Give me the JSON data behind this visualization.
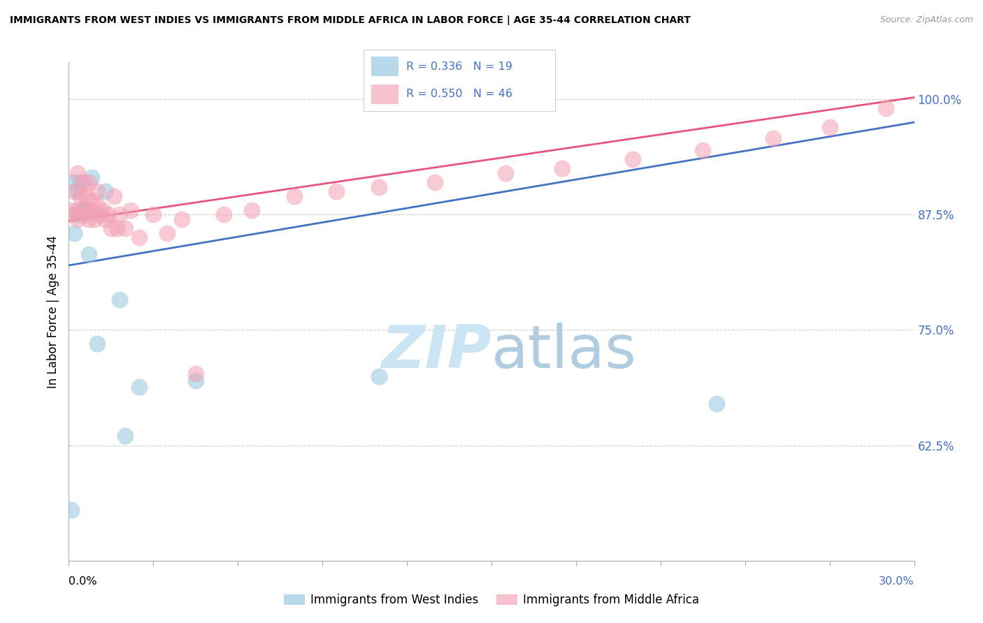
{
  "title": "IMMIGRANTS FROM WEST INDIES VS IMMIGRANTS FROM MIDDLE AFRICA IN LABOR FORCE | AGE 35-44 CORRELATION CHART",
  "source": "Source: ZipAtlas.com",
  "ylabel": "In Labor Force | Age 35-44",
  "xlim": [
    0.0,
    0.3
  ],
  "ylim": [
    0.5,
    1.04
  ],
  "yticks": [
    0.625,
    0.75,
    0.875,
    1.0
  ],
  "ytick_labels": [
    "62.5%",
    "75.0%",
    "87.5%",
    "100.0%"
  ],
  "xticks": [
    0.0,
    0.03,
    0.06,
    0.09,
    0.12,
    0.15,
    0.18,
    0.21,
    0.24,
    0.27,
    0.3
  ],
  "blue_label": "Immigrants from West Indies",
  "pink_label": "Immigrants from Middle Africa",
  "blue_R": 0.336,
  "blue_N": 19,
  "pink_R": 0.55,
  "pink_N": 46,
  "blue_color": "#92c5de",
  "pink_color": "#f4a0b5",
  "blue_line_color": "#4472c4",
  "pink_line_color": "#e8547a",
  "watermark_color": "#cce5f5",
  "blue_scatter_x": [
    0.001,
    0.002,
    0.003,
    0.004,
    0.005,
    0.006,
    0.007,
    0.008,
    0.01,
    0.013,
    0.018,
    0.02,
    0.025,
    0.045,
    0.11,
    0.23,
    0.002,
    0.003,
    0.004
  ],
  "blue_scatter_y": [
    0.555,
    0.855,
    0.88,
    0.875,
    0.878,
    0.88,
    0.832,
    0.915,
    0.735,
    0.9,
    0.783,
    0.635,
    0.688,
    0.695,
    0.7,
    0.67,
    0.91,
    0.9,
    0.91
  ],
  "pink_scatter_x": [
    0.001,
    0.002,
    0.002,
    0.003,
    0.003,
    0.004,
    0.004,
    0.005,
    0.005,
    0.006,
    0.006,
    0.007,
    0.007,
    0.008,
    0.008,
    0.009,
    0.01,
    0.01,
    0.011,
    0.012,
    0.013,
    0.014,
    0.015,
    0.016,
    0.017,
    0.018,
    0.02,
    0.022,
    0.025,
    0.03,
    0.035,
    0.04,
    0.045,
    0.055,
    0.065,
    0.08,
    0.095,
    0.11,
    0.13,
    0.155,
    0.175,
    0.2,
    0.225,
    0.25,
    0.27,
    0.29
  ],
  "pink_scatter_y": [
    0.88,
    0.875,
    0.9,
    0.87,
    0.92,
    0.88,
    0.895,
    0.882,
    0.91,
    0.875,
    0.895,
    0.87,
    0.91,
    0.88,
    0.89,
    0.87,
    0.885,
    0.9,
    0.875,
    0.88,
    0.87,
    0.875,
    0.86,
    0.895,
    0.86,
    0.875,
    0.86,
    0.88,
    0.85,
    0.875,
    0.855,
    0.87,
    0.703,
    0.875,
    0.88,
    0.895,
    0.9,
    0.905,
    0.91,
    0.92,
    0.925,
    0.935,
    0.945,
    0.958,
    0.97,
    0.99
  ],
  "blue_line_x": [
    0.0,
    0.3
  ],
  "blue_line_y": [
    0.82,
    0.975
  ],
  "pink_line_x": [
    0.0,
    0.3
  ],
  "pink_line_y": [
    0.868,
    1.002
  ]
}
